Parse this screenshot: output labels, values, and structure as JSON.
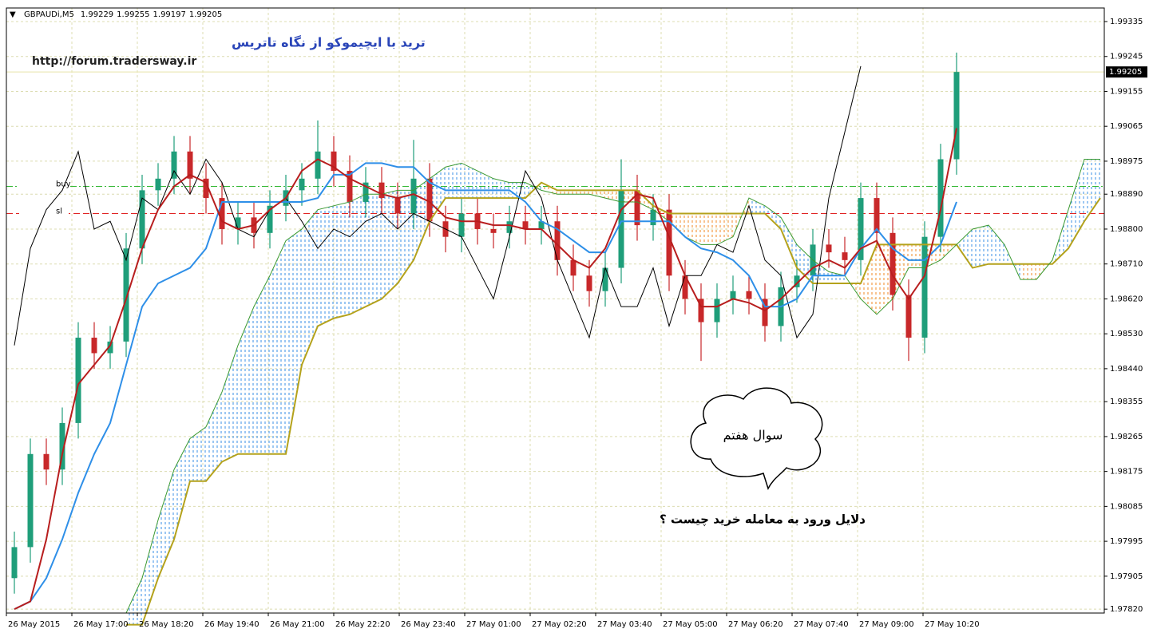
{
  "chart_data": {
    "type": "candlestick",
    "symbol": "GBPAUDi,M5",
    "header_values": [
      1.99229,
      1.99255,
      1.99197,
      1.99205
    ],
    "title": "ترید با ایچیموکو از نگاه تاتریس",
    "subtitle": "http://forum.tradersway.ir",
    "bubble_text": "سوال هفتم",
    "question": "دلایل ورود به معامله خرید چیست ؟",
    "current_price": 1.99205,
    "grid": true,
    "ylim": [
      1.9781,
      1.9937
    ],
    "yticks": [
      {
        "value": 1.99335,
        "label": "1.99335"
      },
      {
        "value": 1.99245,
        "label": "1.99245"
      },
      {
        "value": 1.99155,
        "label": "1.99155"
      },
      {
        "value": 1.99065,
        "label": "1.99065"
      },
      {
        "value": 1.98975,
        "label": "1.98975"
      },
      {
        "value": 1.9889,
        "label": "1.98890"
      },
      {
        "value": 1.988,
        "label": "1.98800"
      },
      {
        "value": 1.9871,
        "label": "1.98710"
      },
      {
        "value": 1.9862,
        "label": "1.98620"
      },
      {
        "value": 1.9853,
        "label": "1.98530"
      },
      {
        "value": 1.9844,
        "label": "1.98440"
      },
      {
        "value": 1.98355,
        "label": "1.98355"
      },
      {
        "value": 1.98265,
        "label": "1.98265"
      },
      {
        "value": 1.98175,
        "label": "1.98175"
      },
      {
        "value": 1.98085,
        "label": "1.98085"
      },
      {
        "value": 1.97995,
        "label": "1.97995"
      },
      {
        "value": 1.97905,
        "label": "1.97905"
      },
      {
        "value": 1.9782,
        "label": "1.97820"
      }
    ],
    "x_labels": [
      "26 May 2015",
      "26 May 17:00",
      "26 May 18:20",
      "26 May 19:40",
      "26 May 21:00",
      "26 May 22:20",
      "26 May 23:40",
      "27 May 01:00",
      "27 May 02:20",
      "27 May 03:40",
      "27 May 05:00",
      "27 May 06:20",
      "27 May 07:40",
      "27 May 09:00",
      "27 May 10:20"
    ],
    "up_color": "#1f9e7a",
    "down_color": "#c8282a",
    "ohlc": [
      [
        1.979,
        1.9802,
        1.9786,
        1.9798
      ],
      [
        1.9798,
        1.9826,
        1.9794,
        1.9822
      ],
      [
        1.9822,
        1.9826,
        1.9814,
        1.9818
      ],
      [
        1.9818,
        1.9834,
        1.9814,
        1.983
      ],
      [
        1.983,
        1.9856,
        1.9826,
        1.9852
      ],
      [
        1.9852,
        1.9856,
        1.9844,
        1.9848
      ],
      [
        1.9848,
        1.9855,
        1.9844,
        1.9851
      ],
      [
        1.9851,
        1.9879,
        1.9847,
        1.9875
      ],
      [
        1.9875,
        1.9894,
        1.9871,
        1.989
      ],
      [
        1.989,
        1.9897,
        1.9886,
        1.9893
      ],
      [
        1.9893,
        1.9904,
        1.9889,
        1.99
      ],
      [
        1.99,
        1.9904,
        1.9889,
        1.9893
      ],
      [
        1.9893,
        1.9897,
        1.9884,
        1.9888
      ],
      [
        1.9888,
        1.9892,
        1.9876,
        1.988
      ],
      [
        1.988,
        1.9887,
        1.9876,
        1.9883
      ],
      [
        1.9883,
        1.9887,
        1.9875,
        1.9879
      ],
      [
        1.9879,
        1.989,
        1.9875,
        1.9886
      ],
      [
        1.9886,
        1.9894,
        1.9882,
        1.989
      ],
      [
        1.989,
        1.9897,
        1.9886,
        1.9893
      ],
      [
        1.9893,
        1.9908,
        1.9889,
        1.99
      ],
      [
        1.99,
        1.9904,
        1.9891,
        1.9895
      ],
      [
        1.9895,
        1.9899,
        1.9883,
        1.9887
      ],
      [
        1.9887,
        1.9896,
        1.9883,
        1.9892
      ],
      [
        1.9892,
        1.9896,
        1.9884,
        1.9888
      ],
      [
        1.9888,
        1.9892,
        1.988,
        1.9884
      ],
      [
        1.9884,
        1.9903,
        1.988,
        1.9893
      ],
      [
        1.9893,
        1.9897,
        1.9878,
        1.9882
      ],
      [
        1.9882,
        1.9886,
        1.9874,
        1.9878
      ],
      [
        1.9878,
        1.9888,
        1.9874,
        1.9884
      ],
      [
        1.9884,
        1.9888,
        1.9876,
        1.988
      ],
      [
        1.988,
        1.9884,
        1.9875,
        1.9879
      ],
      [
        1.9879,
        1.9886,
        1.9875,
        1.9882
      ],
      [
        1.9882,
        1.9886,
        1.9876,
        1.988
      ],
      [
        1.988,
        1.9886,
        1.9876,
        1.9882
      ],
      [
        1.9882,
        1.9886,
        1.9868,
        1.9872
      ],
      [
        1.9872,
        1.9876,
        1.9864,
        1.9868
      ],
      [
        1.9868,
        1.9872,
        1.986,
        1.9864
      ],
      [
        1.9864,
        1.9874,
        1.986,
        1.987
      ],
      [
        1.987,
        1.9898,
        1.9866,
        1.989
      ],
      [
        1.989,
        1.9894,
        1.9877,
        1.9881
      ],
      [
        1.9881,
        1.9889,
        1.9877,
        1.9885
      ],
      [
        1.9885,
        1.9889,
        1.9864,
        1.9868
      ],
      [
        1.9868,
        1.9872,
        1.9858,
        1.9862
      ],
      [
        1.9862,
        1.9866,
        1.9846,
        1.9856
      ],
      [
        1.9856,
        1.9866,
        1.9852,
        1.9862
      ],
      [
        1.9862,
        1.9868,
        1.9858,
        1.9864
      ],
      [
        1.9864,
        1.9868,
        1.9858,
        1.9862
      ],
      [
        1.9862,
        1.9866,
        1.9851,
        1.9855
      ],
      [
        1.9855,
        1.9869,
        1.9851,
        1.9865
      ],
      [
        1.9865,
        1.9872,
        1.9861,
        1.9868
      ],
      [
        1.9868,
        1.988,
        1.9864,
        1.9876
      ],
      [
        1.9876,
        1.988,
        1.987,
        1.9874
      ],
      [
        1.9874,
        1.9878,
        1.9868,
        1.9872
      ],
      [
        1.9872,
        1.9892,
        1.9868,
        1.9888
      ],
      [
        1.9888,
        1.9892,
        1.9875,
        1.9879
      ],
      [
        1.9879,
        1.9883,
        1.9859,
        1.9863
      ],
      [
        1.9863,
        1.9867,
        1.9846,
        1.9852
      ],
      [
        1.9852,
        1.9882,
        1.9848,
        1.9878
      ],
      [
        1.9878,
        1.9902,
        1.9874,
        1.9898
      ],
      [
        1.9898,
        1.99255,
        1.9894,
        1.99205
      ]
    ],
    "lines": [
      {
        "kind": "senkou_b",
        "color": "#b4a21c",
        "width": 2,
        "values": [
          null,
          null,
          null,
          null,
          null,
          null,
          null,
          1.9778,
          1.9778,
          1.979,
          1.98,
          1.9815,
          1.9815,
          1.982,
          1.9822,
          1.9822,
          1.9822,
          1.9822,
          1.9845,
          1.9855,
          1.9857,
          1.9858,
          1.986,
          1.9862,
          1.9866,
          1.9872,
          1.9882,
          1.9888,
          1.9888,
          1.9888,
          1.9888,
          1.9888,
          1.9888,
          1.9892,
          1.989,
          1.989,
          1.989,
          1.989,
          1.989,
          1.989,
          1.9886,
          1.9884,
          1.9884,
          1.9884,
          1.9884,
          1.9884,
          1.9884,
          1.9884,
          1.988,
          1.987,
          1.9866,
          1.9866,
          1.9866,
          1.9866,
          1.9876,
          1.9876,
          1.9876,
          1.9876,
          1.9876,
          1.9876,
          1.987,
          1.9871,
          1.9871,
          1.9871,
          1.9871,
          1.9871,
          1.9875,
          1.9882,
          1.9888
        ]
      },
      {
        "kind": "senkou_a",
        "color": "#3c9a32",
        "width": 1,
        "values": [
          null,
          null,
          null,
          null,
          null,
          null,
          null,
          1.9781,
          1.979,
          1.9805,
          1.9818,
          1.9826,
          1.9829,
          1.9838,
          1.985,
          1.986,
          1.9868,
          1.9877,
          1.988,
          1.9885,
          1.9886,
          1.9887,
          1.9889,
          1.9889,
          1.989,
          1.989,
          1.9893,
          1.9896,
          1.9897,
          1.9895,
          1.9893,
          1.9892,
          1.9892,
          1.989,
          1.9889,
          1.9889,
          1.9889,
          1.9888,
          1.9887,
          1.9887,
          1.9885,
          1.9882,
          1.9878,
          1.9876,
          1.9876,
          1.9878,
          1.9888,
          1.9886,
          1.9883,
          1.9876,
          1.9872,
          1.9869,
          1.9868,
          1.9862,
          1.9858,
          1.9862,
          1.987,
          1.987,
          1.9872,
          1.9876,
          1.988,
          1.9881,
          1.9876,
          1.9867,
          1.9867,
          1.9872,
          1.9885,
          1.9898,
          1.9898
        ]
      },
      {
        "kind": "chikou",
        "color": "#000000",
        "width": 1,
        "values": [
          1.985,
          1.9875,
          1.9885,
          1.989,
          1.99,
          1.988,
          1.9882,
          1.9872,
          1.9888,
          1.9885,
          1.9895,
          1.9889,
          1.9898,
          1.9892,
          1.988,
          1.9878,
          1.9885,
          1.9888,
          1.9882,
          1.9875,
          1.988,
          1.9878,
          1.9882,
          1.9884,
          1.988,
          1.9884,
          1.9882,
          1.988,
          1.9878,
          1.987,
          1.9862,
          1.9878,
          1.9895,
          1.9888,
          1.9872,
          1.9862,
          1.9852,
          1.987,
          1.986,
          1.986,
          1.987,
          1.9855,
          1.9868,
          1.9868,
          1.9876,
          1.9874,
          1.9886,
          1.9872,
          1.9868,
          1.9852,
          1.9858,
          1.9888,
          1.9905,
          1.9922,
          null,
          null,
          null,
          null,
          null,
          null,
          null,
          null,
          null,
          null,
          null,
          null,
          null,
          null,
          null
        ]
      },
      {
        "kind": "kijun",
        "color": "#2e8fe8",
        "width": 2,
        "values": [
          1.9782,
          1.9784,
          1.979,
          1.98,
          1.9812,
          1.9822,
          1.983,
          1.9845,
          1.986,
          1.9866,
          1.9868,
          1.987,
          1.9875,
          1.9887,
          1.9887,
          1.9887,
          1.9887,
          1.9887,
          1.9887,
          1.9888,
          1.9894,
          1.9894,
          1.9897,
          1.9897,
          1.9896,
          1.9896,
          1.9892,
          1.989,
          1.989,
          1.989,
          1.989,
          1.989,
          1.9887,
          1.9882,
          1.988,
          1.9877,
          1.9874,
          1.9874,
          1.9882,
          1.9882,
          1.9882,
          1.9882,
          1.9878,
          1.9875,
          1.9874,
          1.9872,
          1.9868,
          1.986,
          1.986,
          1.9862,
          1.9868,
          1.9868,
          1.9868,
          1.9875,
          1.988,
          1.9875,
          1.9872,
          1.9872,
          1.9876,
          1.9887,
          null,
          null,
          null,
          null,
          null,
          null,
          null,
          null,
          null
        ]
      },
      {
        "kind": "tenkan",
        "color": "#b81e1e",
        "width": 2,
        "values": [
          1.9782,
          1.9784,
          1.98,
          1.9822,
          1.984,
          1.9845,
          1.985,
          1.9862,
          1.9875,
          1.9885,
          1.9891,
          1.9894,
          1.9892,
          1.9882,
          1.988,
          1.9881,
          1.9885,
          1.9888,
          1.9895,
          1.9898,
          1.9896,
          1.9893,
          1.9891,
          1.9889,
          1.9888,
          1.9889,
          1.9887,
          1.9883,
          1.9882,
          1.9882,
          1.9881,
          1.9881,
          1.988,
          1.988,
          1.9876,
          1.9872,
          1.987,
          1.9875,
          1.9885,
          1.9889,
          1.9888,
          1.9878,
          1.9868,
          1.986,
          1.986,
          1.9862,
          1.9861,
          1.9859,
          1.9862,
          1.9866,
          1.987,
          1.9872,
          1.987,
          1.9875,
          1.9877,
          1.9868,
          1.9862,
          1.9868,
          1.9885,
          1.9906,
          null,
          null,
          null,
          null,
          null,
          null,
          null,
          null,
          null
        ]
      }
    ],
    "hlines": [
      {
        "name": "buy",
        "value": 1.9891,
        "color": "#33b833"
      },
      {
        "name": "sl",
        "value": 1.9884,
        "color": "#e02424"
      }
    ]
  }
}
